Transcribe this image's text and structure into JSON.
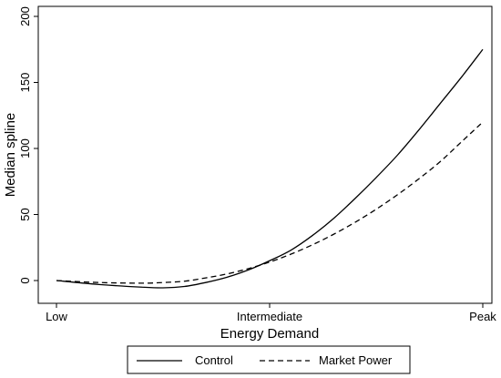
{
  "chart_data": {
    "type": "line",
    "xlabel": "Energy Demand",
    "ylabel": "Median spline",
    "x_ticks": [
      "Low",
      "Intermediate",
      "Peak"
    ],
    "x_tick_positions": [
      0,
      1,
      2
    ],
    "xlim": [
      0,
      2
    ],
    "ylim": [
      0,
      200
    ],
    "y_ticks": [
      0,
      50,
      100,
      150,
      200
    ],
    "grid": false,
    "legend_position": "bottom",
    "series": [
      {
        "name": "Control",
        "line_style": "solid",
        "color": "#000000",
        "x": [
          0,
          0.2,
          0.4,
          0.5,
          0.6,
          0.7,
          0.8,
          0.9,
          1.0,
          1.1,
          1.2,
          1.3,
          1.4,
          1.5,
          1.6,
          1.7,
          1.8,
          1.9,
          2.0
        ],
        "y": [
          0,
          -3,
          -5,
          -5.5,
          -4.5,
          -1.5,
          2.5,
          8,
          15,
          23,
          34,
          47,
          62,
          78,
          95,
          114,
          134,
          154,
          175
        ]
      },
      {
        "name": "Market Power",
        "line_style": "dashed",
        "color": "#000000",
        "x": [
          0,
          0.2,
          0.4,
          0.5,
          0.6,
          0.7,
          0.8,
          0.9,
          1.0,
          1.1,
          1.2,
          1.3,
          1.4,
          1.5,
          1.6,
          1.7,
          1.8,
          1.9,
          2.0
        ],
        "y": [
          0,
          -1.5,
          -2,
          -1.5,
          -0.5,
          2,
          5,
          9,
          14,
          20,
          27,
          35,
          44,
          54,
          65,
          77,
          90,
          105,
          120
        ]
      }
    ]
  }
}
